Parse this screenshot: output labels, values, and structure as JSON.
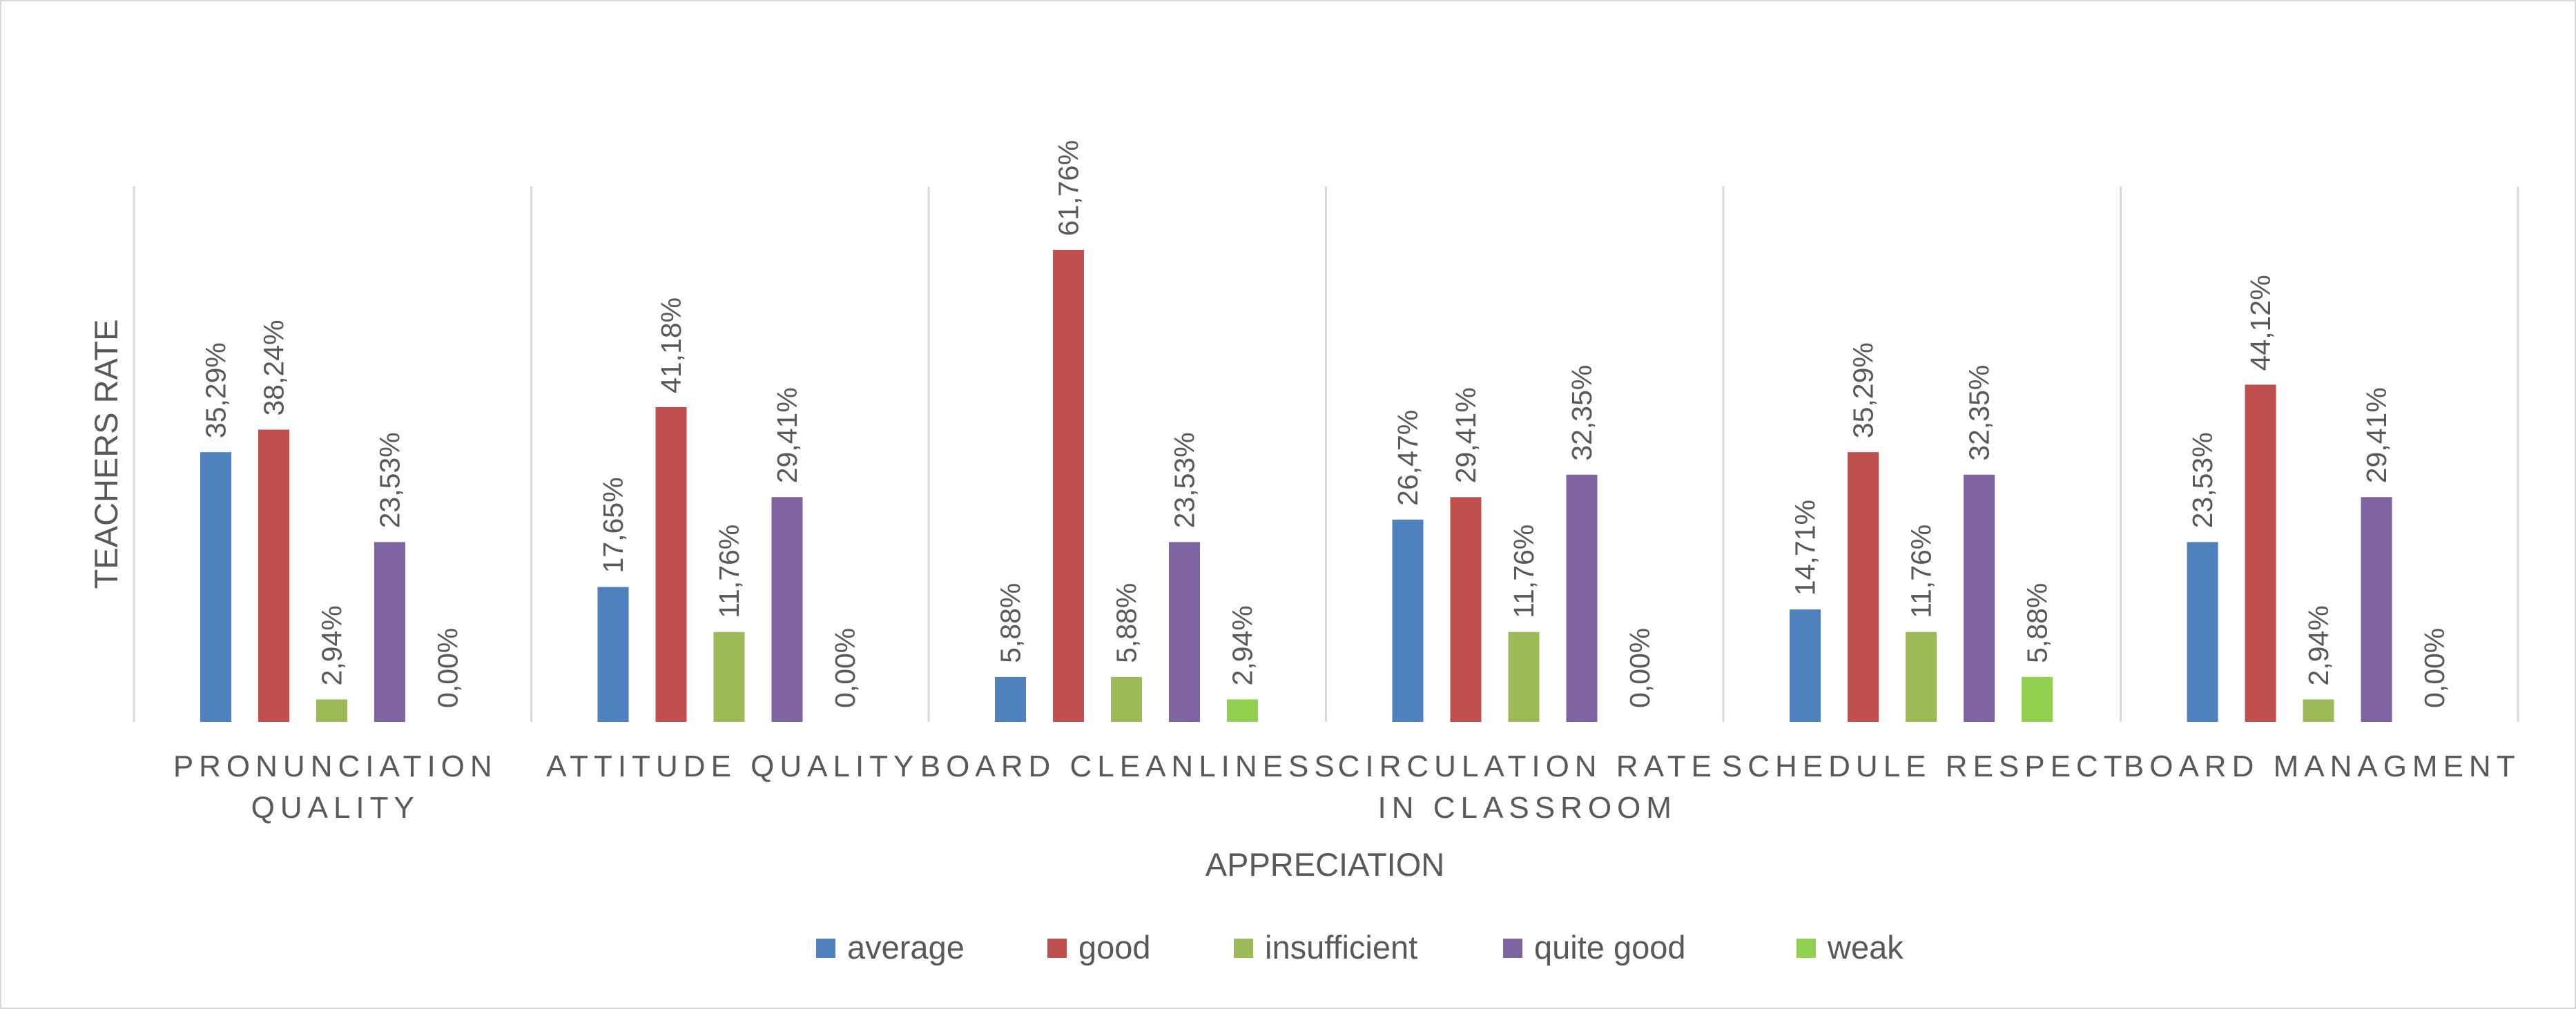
{
  "chart_data": {
    "type": "bar",
    "xlabel": "APPRECIATION",
    "ylabel": "TEACHERS RATE",
    "ylim": [
      0,
      70
    ],
    "grid": false,
    "legend_position": "bottom",
    "categories": [
      "PRONUNCIATION QUALITY",
      "ATTITUDE QUALITY",
      "BOARD CLEANLINESS",
      "CIRCULATION RATE IN CLASSROOM",
      "SCHEDULE RESPECT",
      "BOARD MANAGMENT"
    ],
    "category_lines": [
      [
        "PRONUNCIATION",
        "QUALITY"
      ],
      [
        "ATTITUDE QUALITY"
      ],
      [
        "BOARD CLEANLINESS"
      ],
      [
        "CIRCULATION RATE",
        "IN CLASSROOM"
      ],
      [
        "SCHEDULE RESPECT"
      ],
      [
        "BOARD MANAGMENT"
      ]
    ],
    "series": [
      {
        "name": "average",
        "color": "#4f81bd",
        "values": [
          35.29,
          17.65,
          5.88,
          26.47,
          14.71,
          23.53
        ],
        "labels": [
          "35,29%",
          "17,65%",
          "5,88%",
          "26,47%",
          "14,71%",
          "23,53%"
        ]
      },
      {
        "name": "good",
        "color": "#c0504d",
        "values": [
          38.24,
          41.18,
          61.76,
          29.41,
          35.29,
          44.12
        ],
        "labels": [
          "38,24%",
          "41,18%",
          "61,76%",
          "29,41%",
          "35,29%",
          "44,12%"
        ]
      },
      {
        "name": "insufficient",
        "color": "#9bbb59",
        "values": [
          2.94,
          11.76,
          5.88,
          11.76,
          11.76,
          2.94
        ],
        "labels": [
          "2,94%",
          "11,76%",
          "5,88%",
          "11,76%",
          "11,76%",
          "2,94%"
        ]
      },
      {
        "name": "quite good",
        "color": "#8064a2",
        "values": [
          23.53,
          29.41,
          23.53,
          32.35,
          32.35,
          29.41
        ],
        "labels": [
          "23,53%",
          "29,41%",
          "23,53%",
          "32,35%",
          "32,35%",
          "29,41%"
        ]
      },
      {
        "name": "weak",
        "color": "#92d050",
        "values": [
          0.0,
          0.0,
          2.94,
          0.0,
          5.88,
          0.0
        ],
        "labels": [
          "0,00%",
          "0,00%",
          "2,94%",
          "0,00%",
          "5,88%",
          "0,00%"
        ]
      }
    ]
  }
}
